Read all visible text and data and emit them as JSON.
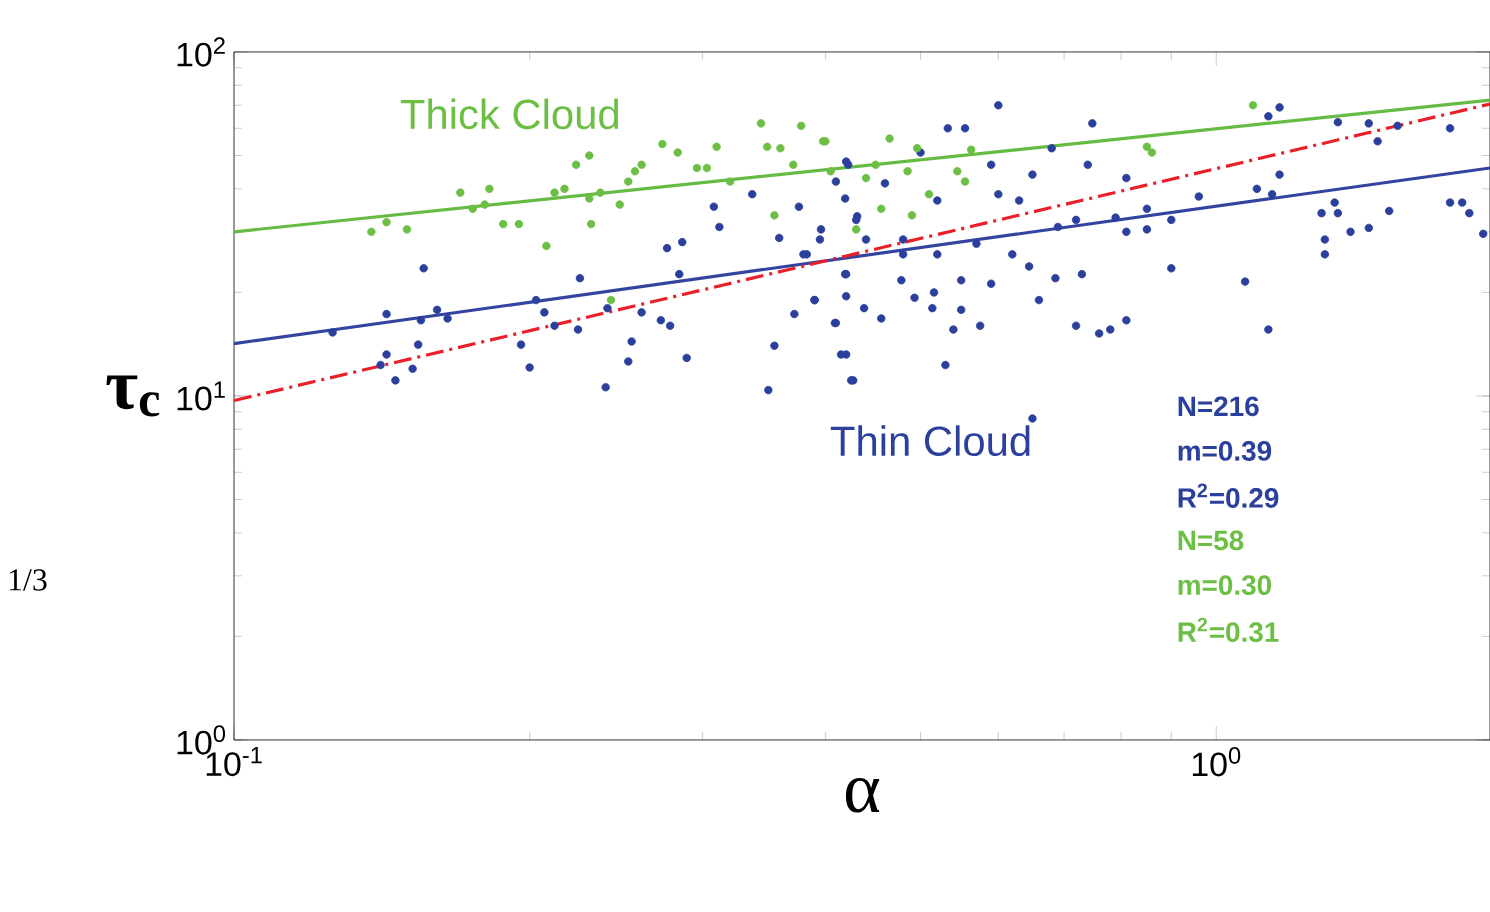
{
  "chart_data": {
    "type": "scatter",
    "xlabel": "α",
    "ylabel": "τ$_{c}$",
    "log": "xy",
    "xlim": [
      0.1,
      1.9
    ],
    "ylim": [
      1,
      100
    ],
    "xticks": [
      {
        "value": 0.1,
        "label": "10$^{-1}$"
      },
      {
        "value": 1,
        "label": "10$^{0}$"
      }
    ],
    "yticks": [
      {
        "value": 1,
        "label": "10$^{0}$"
      },
      {
        "value": 10,
        "label": "10$^{1}$"
      },
      {
        "value": 100,
        "label": "10$^{2}$"
      }
    ],
    "series": [
      {
        "name": "Thick Cloud",
        "marker": "circle",
        "color": "#6cbf44",
        "x": [
          0.138,
          0.143,
          0.15,
          0.17,
          0.175,
          0.18,
          0.182,
          0.188,
          0.195,
          0.208,
          0.212,
          0.217,
          0.223,
          0.23,
          0.23,
          0.231,
          0.236,
          0.247,
          0.252,
          0.256,
          0.26,
          0.273,
          0.283,
          0.296,
          0.303,
          0.31,
          0.32,
          0.344,
          0.349,
          0.36,
          0.355,
          0.371,
          0.378,
          0.398,
          0.242,
          0.43,
          0.4,
          0.405,
          0.45,
          0.465,
          0.496,
          0.485,
          0.49,
          0.51,
          0.545,
          0.555,
          0.563,
          0.456,
          0.85,
          0.86,
          1.09,
          0.44
        ],
        "values": [
          30,
          32,
          30.5,
          39,
          35,
          36,
          40,
          31.6,
          31.6,
          27.3,
          39,
          40,
          47,
          50,
          37.5,
          31.6,
          39,
          36,
          42,
          45,
          47,
          54,
          51,
          46,
          46,
          53,
          42,
          62,
          53,
          52.5,
          33.5,
          47,
          61,
          55,
          19,
          30.5,
          55,
          45,
          47,
          56,
          52.5,
          45,
          33.5,
          38.6,
          45,
          42,
          52,
          35,
          53,
          51,
          70,
          43
        ]
      },
      {
        "name": "Thin Cloud",
        "marker": "circle",
        "color": "#2b3f9c",
        "x": [
          0.126,
          0.143,
          0.143,
          0.141,
          0.146,
          0.152,
          0.154,
          0.155,
          0.156,
          0.161,
          0.165,
          0.196,
          0.2,
          0.203,
          0.207,
          0.212,
          0.224,
          0.225,
          0.239,
          0.24,
          0.252,
          0.254,
          0.26,
          0.272,
          0.276,
          0.278,
          0.284,
          0.286,
          0.289,
          0.308,
          0.312,
          0.337,
          0.35,
          0.355,
          0.359,
          0.372,
          0.376,
          0.383,
          0.39,
          0.396,
          0.409,
          0.415,
          0.419,
          0.419,
          0.427,
          0.422,
          0.431,
          0.6,
          0.533,
          0.555,
          0.748,
          1.13,
          1.16,
          1.33,
          1.43,
          1.46,
          1.53,
          1.73,
          0.68,
          0.42,
          0.5,
          0.59,
          0.74,
          0.81,
          0.96,
          1.1,
          1.14,
          1.16,
          0.41,
          0.46,
          0.52,
          0.6,
          0.65,
          0.63,
          0.72,
          0.79,
          0.85,
          0.9,
          0.81,
          0.85,
          1.28,
          1.33,
          1.32,
          1.37,
          1.43,
          1.5,
          1.73,
          1.78,
          1.81,
          1.87,
          1.29,
          1.29,
          0.43,
          0.44,
          0.48,
          0.48,
          0.52,
          0.57,
          0.62,
          0.645,
          0.69,
          0.38,
          0.395,
          0.42,
          0.39,
          0.42,
          0.41,
          0.438,
          0.456,
          0.478,
          0.493,
          0.516,
          0.514,
          0.55,
          0.55,
          0.54,
          0.575,
          0.59,
          0.53,
          0.42,
          0.425,
          0.686,
          0.73,
          0.66,
          0.72,
          0.76,
          0.78,
          0.81,
          0.9,
          1.07,
          1.13,
          0.65
        ],
        "values": [
          15.3,
          17.3,
          13.2,
          12.3,
          11.1,
          12,
          14.1,
          16.6,
          23.5,
          17.8,
          16.8,
          14.1,
          12.1,
          19,
          17.5,
          16,
          15.6,
          22,
          10.6,
          18,
          12.6,
          14.4,
          17.5,
          16.6,
          26.9,
          16,
          22.6,
          28,
          12.9,
          35.5,
          31,
          38.6,
          10.4,
          14,
          28.8,
          17.3,
          35.5,
          25.8,
          19,
          30.5,
          16.3,
          13.2,
          22.6,
          37.5,
          11.1,
          47,
          33.3,
          70,
          60,
          60,
          62,
          65,
          69,
          62.5,
          62,
          55,
          61,
          60,
          52.5,
          48,
          51,
          47,
          47,
          43,
          38,
          40,
          38.6,
          44,
          42,
          41.5,
          37,
          38.6,
          44,
          37,
          32.5,
          33,
          35,
          32.5,
          30,
          30.5,
          34,
          34,
          36.5,
          30,
          30.8,
          34.5,
          36.5,
          36.5,
          34,
          29.6,
          28.5,
          25.8,
          32.5,
          28.5,
          25.8,
          28.5,
          25.8,
          27.7,
          25.8,
          23.8,
          31,
          25.8,
          28.5,
          22.6,
          19,
          19.5,
          16.3,
          18,
          16.8,
          21.7,
          19.3,
          20,
          18,
          21.7,
          17.8,
          15.6,
          16,
          21.2,
          12.3,
          13.2,
          11.1,
          22,
          22.6,
          19,
          16,
          15.2,
          15.6,
          16.6,
          23.5,
          21.5,
          15.6,
          8.6
        ]
      },
      {
        "type": "line",
        "marker": "none",
        "line_style": "solid",
        "color": "#66bb44",
        "x": [
          0.1,
          1.9
        ],
        "values": [
          30,
          72.5
        ]
      },
      {
        "type": "line",
        "marker": "none",
        "line_style": "solid",
        "color": "#3344a0",
        "x": [
          0.1,
          1.9
        ],
        "values": [
          14.2,
          46
        ]
      },
      {
        "type": "line",
        "marker": "none",
        "line_style": "dashed",
        "color": "#e8202a",
        "x": [
          0.1,
          1.9
        ],
        "values": [
          9.7,
          70.6
        ]
      }
    ],
    "annotations": [
      "N=216",
      "m=0.39",
      "R$^{2}$=0.29",
      "N=58",
      "m=0.30",
      "R$^{2}$=0.31",
      "1/3"
    ]
  }
}
